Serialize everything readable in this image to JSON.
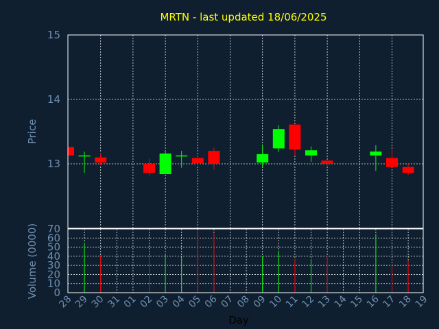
{
  "chart_data": {
    "type": "candlestick",
    "title": "MRTN - last updated 18/06/2025",
    "xlabel": "Day",
    "ylabel_price": "Price",
    "ylabel_volume": "Volume (0000)",
    "price_ylim": [
      12.0,
      15.0
    ],
    "price_ticks": [
      "13",
      "14",
      "15"
    ],
    "volume_ylim": [
      0,
      70
    ],
    "volume_ticks": [
      "0",
      "10",
      "20",
      "30",
      "40",
      "50",
      "60",
      "70"
    ],
    "x_ticks": [
      "28",
      "29",
      "30",
      "31",
      "01",
      "02",
      "03",
      "04",
      "05",
      "06",
      "07",
      "08",
      "09",
      "10",
      "11",
      "12",
      "13",
      "14",
      "15",
      "16",
      "17",
      "18",
      "19"
    ],
    "grid": true,
    "colors": {
      "up": "#00ff00",
      "down": "#ff0000",
      "title": "#ffff00",
      "axis_text": "#6f8fb0",
      "background": "#0f1f30"
    },
    "candles": [
      {
        "day": "28",
        "open": 13.26,
        "close": 13.13,
        "high": 13.26,
        "low": 13.13,
        "volume": 0
      },
      {
        "day": "29",
        "open": 13.12,
        "close": 13.13,
        "high": 13.19,
        "low": 12.86,
        "volume": 55
      },
      {
        "day": "30",
        "open": 13.1,
        "close": 13.02,
        "high": 13.17,
        "low": 12.98,
        "volume": 41
      },
      {
        "day": "02",
        "open": 13.0,
        "close": 12.86,
        "high": 13.08,
        "low": 12.82,
        "volume": 41
      },
      {
        "day": "03",
        "open": 12.84,
        "close": 13.16,
        "high": 13.21,
        "low": 12.84,
        "volume": 43
      },
      {
        "day": "04",
        "open": 13.12,
        "close": 13.13,
        "high": 13.2,
        "low": 12.94,
        "volume": 38
      },
      {
        "day": "05",
        "open": 13.09,
        "close": 13.01,
        "high": 13.14,
        "low": 12.98,
        "volume": 68
      },
      {
        "day": "06",
        "open": 13.2,
        "close": 13.0,
        "high": 13.25,
        "low": 12.91,
        "volume": 65
      },
      {
        "day": "09",
        "open": 13.02,
        "close": 13.15,
        "high": 13.3,
        "low": 12.95,
        "volume": 40
      },
      {
        "day": "10",
        "open": 13.24,
        "close": 13.54,
        "high": 13.6,
        "low": 13.18,
        "volume": 46
      },
      {
        "day": "11",
        "open": 13.61,
        "close": 13.22,
        "high": 13.61,
        "low": 13.13,
        "volume": 37
      },
      {
        "day": "12",
        "open": 13.13,
        "close": 13.21,
        "high": 13.27,
        "low": 13.03,
        "volume": 37
      },
      {
        "day": "13",
        "open": 13.05,
        "close": 13.0,
        "high": 13.05,
        "low": 12.97,
        "volume": 40
      },
      {
        "day": "16",
        "open": 13.13,
        "close": 13.19,
        "high": 13.29,
        "low": 12.89,
        "volume": 63
      },
      {
        "day": "17",
        "open": 13.09,
        "close": 12.95,
        "high": 13.23,
        "low": 12.95,
        "volume": 30
      },
      {
        "day": "18",
        "open": 12.95,
        "close": 12.86,
        "high": 13.0,
        "low": 12.83,
        "volume": 35
      }
    ]
  }
}
